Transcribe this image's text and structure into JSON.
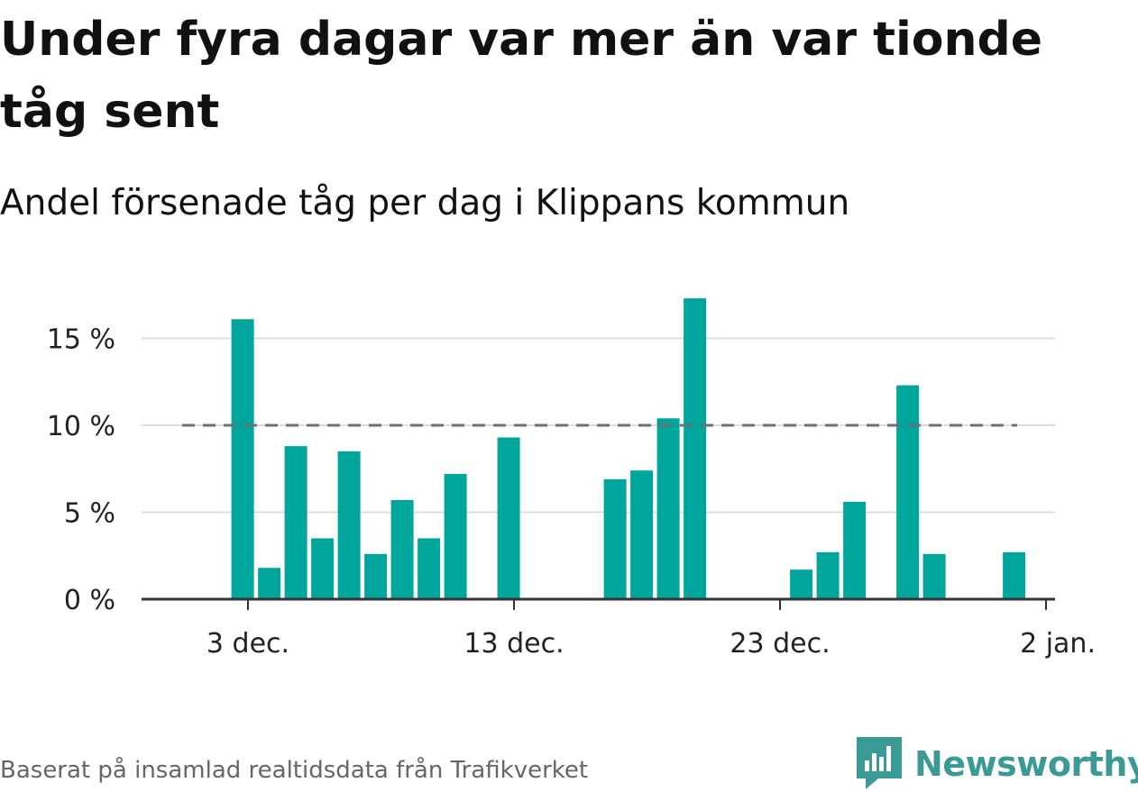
{
  "title": "Under fyra dagar var mer än var tionde tåg sent",
  "subtitle": "Andel försenade tåg per dag i Klippans kommun",
  "source": "Baserat på insamlad realtidsdata från Trafikverket",
  "brand": {
    "name": "Newsworthy",
    "icon": "newsworthy-logo-icon"
  },
  "colors": {
    "bar": "#00a59c",
    "reference": "#6e6e78",
    "grid": "#dddddd",
    "axis": "#333333",
    "brand": "#3a9a95"
  },
  "chart_data": {
    "type": "bar",
    "ylim": [
      0,
      18
    ],
    "yticks": [
      {
        "value": 0,
        "label": "0 %"
      },
      {
        "value": 5,
        "label": "5 %"
      },
      {
        "value": 10,
        "label": "10 %"
      },
      {
        "value": 15,
        "label": "15 %"
      }
    ],
    "xticks": [
      {
        "day": 3,
        "label": "3 dec."
      },
      {
        "day": 13,
        "label": "13 dec."
      },
      {
        "day": 23,
        "label": "23 dec."
      },
      {
        "day": 33,
        "label": "2 jan."
      }
    ],
    "x_range": [
      -1,
      33
    ],
    "grid": true,
    "reference_line": {
      "value": 10,
      "style": "dashed"
    },
    "bars": [
      {
        "day": 2.8,
        "value": 16.1
      },
      {
        "day": 3.8,
        "value": 1.8
      },
      {
        "day": 4.8,
        "value": 8.8
      },
      {
        "day": 5.8,
        "value": 3.5
      },
      {
        "day": 6.8,
        "value": 8.5
      },
      {
        "day": 7.8,
        "value": 2.6
      },
      {
        "day": 8.8,
        "value": 5.7
      },
      {
        "day": 9.8,
        "value": 3.5
      },
      {
        "day": 10.8,
        "value": 7.2
      },
      {
        "day": 12.8,
        "value": 9.3
      },
      {
        "day": 16.8,
        "value": 6.9
      },
      {
        "day": 17.8,
        "value": 7.4
      },
      {
        "day": 18.8,
        "value": 10.4
      },
      {
        "day": 19.8,
        "value": 17.3
      },
      {
        "day": 23.8,
        "value": 1.7
      },
      {
        "day": 24.8,
        "value": 2.7
      },
      {
        "day": 25.8,
        "value": 5.6
      },
      {
        "day": 27.8,
        "value": 12.3
      },
      {
        "day": 28.8,
        "value": 2.6
      },
      {
        "day": 31.8,
        "value": 2.7
      }
    ]
  }
}
